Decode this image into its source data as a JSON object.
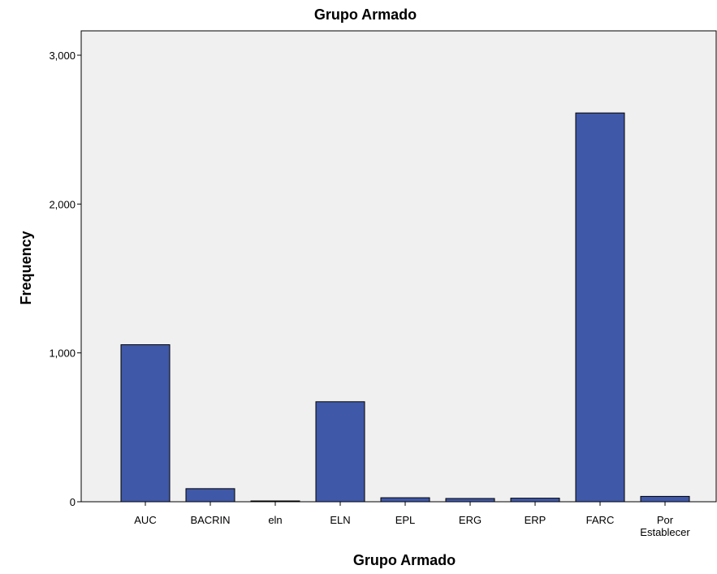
{
  "chart_data": {
    "type": "bar",
    "title": "Grupo Armado",
    "xlabel": "Grupo Armado",
    "ylabel": "Frequency",
    "categories": [
      "AUC",
      "BACRIN",
      "eln",
      "ELN",
      "EPL",
      "ERG",
      "ERP",
      "FARC",
      "Por Establecer"
    ],
    "values": [
      1055,
      88,
      3,
      672,
      27,
      22,
      24,
      2612,
      36
    ],
    "ylim": [
      0,
      3200
    ],
    "yticks": [
      0,
      1000,
      2000,
      3000
    ],
    "ytick_labels": [
      "0",
      "1,000",
      "2,000",
      "3,000"
    ],
    "grid": false,
    "legend": "none",
    "colors": {
      "bar_fill": "#3f58a8",
      "bar_stroke": "#000000",
      "plot_background": "#f0f0f0",
      "axis": "#000000"
    }
  }
}
